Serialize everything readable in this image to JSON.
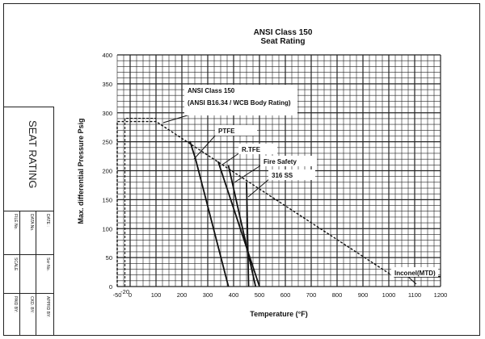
{
  "title_block": {
    "title": "SEAT RATING",
    "fields": [
      "DATE :",
      "DATA No.",
      "FILE No.",
      "Ser No.",
      "SCALE",
      "APPRD BY:",
      "CKD. BY:",
      "PAID BY:"
    ]
  },
  "chart_data": {
    "type": "line",
    "title": "ANSI Class 150",
    "subtitle": "Seat Rating",
    "xlabel": "Temperature (°F)",
    "ylabel": "Max. differential Pressure Psig",
    "xlim": [
      -50,
      1200
    ],
    "ylim": [
      0,
      400
    ],
    "x_ticks": [
      -50,
      -20,
      0,
      100,
      200,
      300,
      400,
      500,
      600,
      700,
      800,
      900,
      1000,
      1100,
      1200
    ],
    "y_ticks": [
      0,
      50,
      100,
      150,
      200,
      250,
      300,
      350,
      400
    ],
    "grid": true,
    "series": [
      {
        "style": "dashed",
        "points": [
          [
            -50,
            0
          ],
          [
            -50,
            285
          ],
          [
            100,
            285
          ],
          [
            1020,
            17
          ],
          [
            1200,
            17
          ]
        ]
      },
      {
        "style": "solid",
        "points": [
          [
            231,
            251
          ],
          [
            253,
            220
          ],
          [
            380,
            0
          ]
        ]
      },
      {
        "style": "solid",
        "points": [
          [
            340,
            216
          ],
          [
            500,
            0
          ]
        ]
      },
      {
        "style": "solid",
        "points": [
          [
            380,
            209
          ],
          [
            485,
            0
          ]
        ]
      },
      {
        "style": "solid",
        "points": [
          [
            450,
            180
          ],
          [
            458,
            0
          ]
        ]
      },
      {
        "style": "solid",
        "points": [
          [
            1020,
            17
          ],
          [
            1200,
            17
          ]
        ]
      }
    ],
    "annotations": [
      "ANSI Class 150",
      "(ANSI B16.34 / WCB Body Rating)",
      "PTFE",
      "R.TFE",
      "Fire Safety",
      "316 SS",
      "Inconel(MTD)"
    ]
  }
}
